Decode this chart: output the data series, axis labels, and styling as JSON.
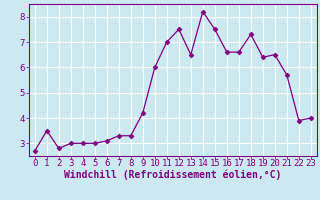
{
  "x": [
    0,
    1,
    2,
    3,
    4,
    5,
    6,
    7,
    8,
    9,
    10,
    11,
    12,
    13,
    14,
    15,
    16,
    17,
    18,
    19,
    20,
    21,
    22,
    23
  ],
  "y": [
    2.7,
    3.5,
    2.8,
    3.0,
    3.0,
    3.0,
    3.1,
    3.3,
    3.3,
    4.2,
    6.0,
    7.0,
    7.5,
    6.5,
    8.2,
    7.5,
    6.6,
    6.6,
    7.3,
    6.4,
    6.5,
    5.7,
    3.9,
    4.0
  ],
  "line_color": "#800080",
  "marker": "D",
  "marker_size": 2.5,
  "xlim": [
    -0.5,
    23.5
  ],
  "ylim": [
    2.5,
    8.5
  ],
  "yticks": [
    3,
    4,
    5,
    6,
    7,
    8
  ],
  "xticks": [
    0,
    1,
    2,
    3,
    4,
    5,
    6,
    7,
    8,
    9,
    10,
    11,
    12,
    13,
    14,
    15,
    16,
    17,
    18,
    19,
    20,
    21,
    22,
    23
  ],
  "bg_color": "#cce8f0",
  "grid_color": "#ffffff",
  "axis_label_color": "#800080",
  "tick_color": "#800080",
  "xlabel": "Windchill (Refroidissement éolien,°C)",
  "xlabel_fontsize": 7,
  "tick_fontsize": 6.5
}
